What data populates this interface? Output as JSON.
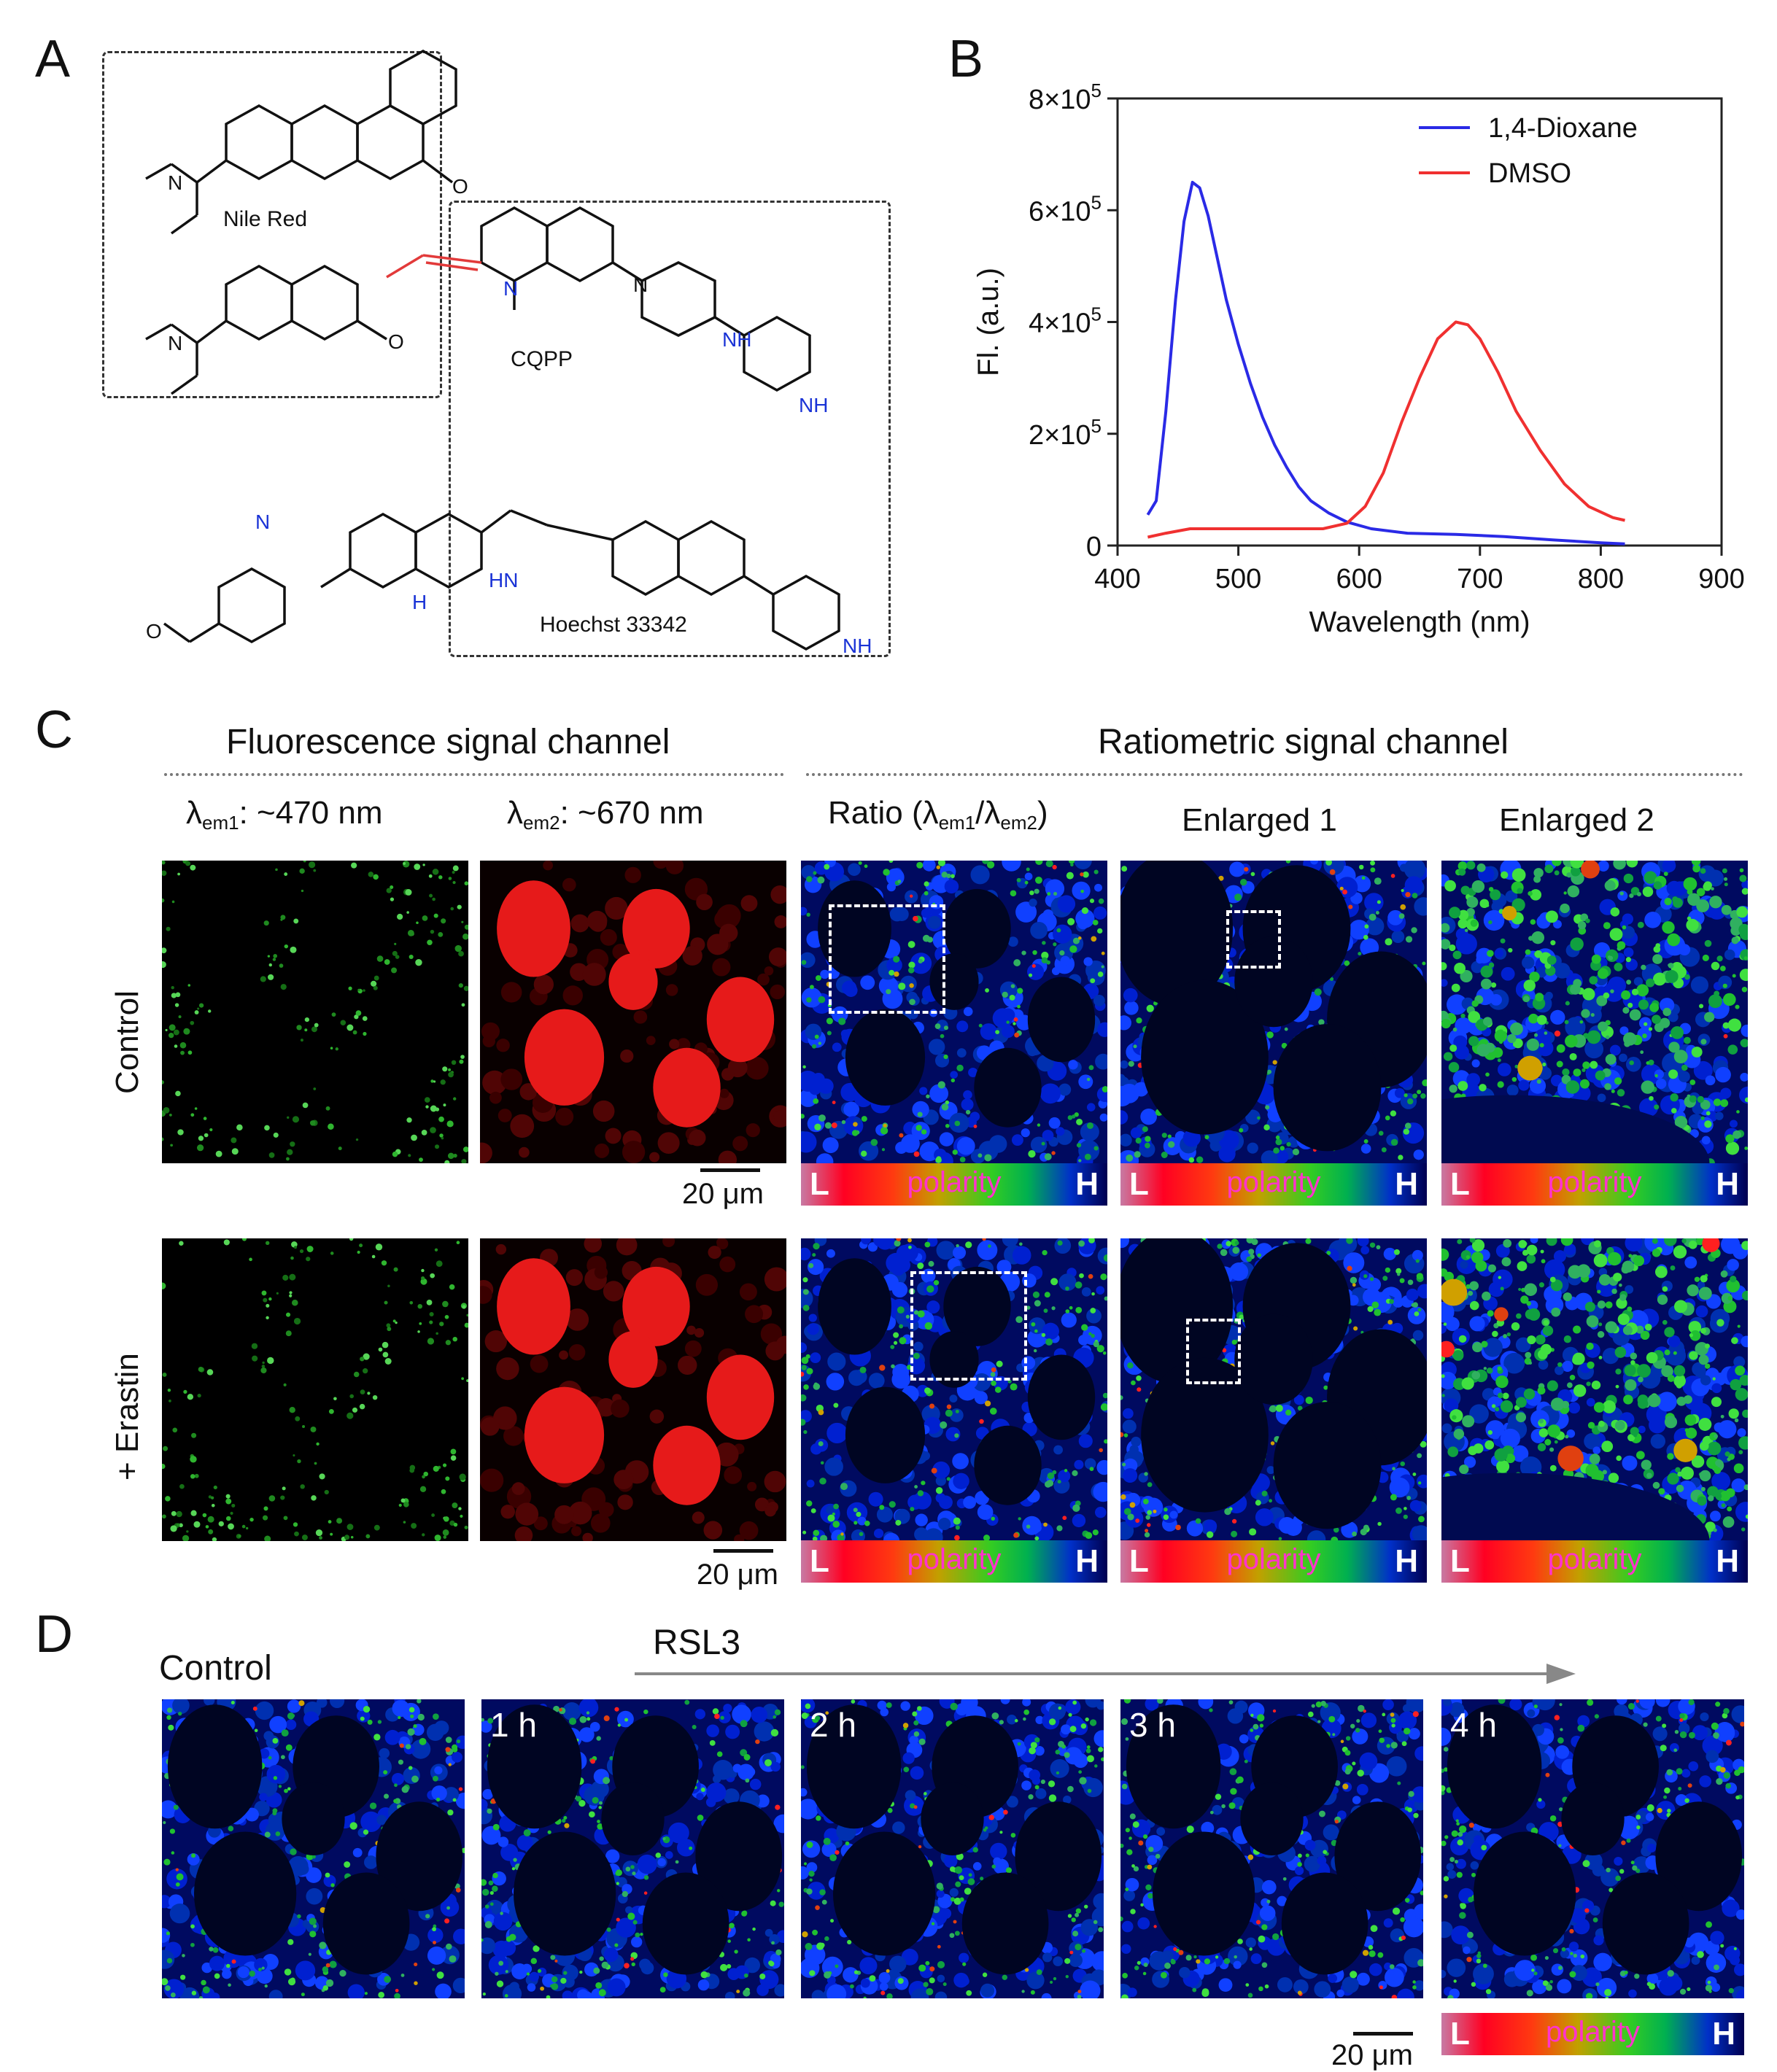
{
  "panels": {
    "a": "A",
    "b": "B",
    "c": "C",
    "d": "D"
  },
  "panel_a": {
    "molecules": [
      "Nile Red",
      "CQPP",
      "Hoechst 33342"
    ]
  },
  "chart_data": {
    "type": "line",
    "title": "",
    "xlabel": "Wavelength (nm)",
    "ylabel": "Fl. (a.u.)",
    "xlim": [
      400,
      900
    ],
    "ylim": [
      0,
      800000
    ],
    "xticks": [
      "400",
      "500",
      "600",
      "700",
      "800",
      "900"
    ],
    "ytick_values": [
      0,
      200000,
      400000,
      600000,
      800000
    ],
    "ytick_labels": [
      {
        "base": "0",
        "exp": ""
      },
      {
        "base": "2×10",
        "exp": "5"
      },
      {
        "base": "4×10",
        "exp": "5"
      },
      {
        "base": "6×10",
        "exp": "5"
      },
      {
        "base": "8×10",
        "exp": "5"
      }
    ],
    "grid": false,
    "legend_position": "top-right",
    "series": [
      {
        "name": "1,4-Dioxane",
        "color": "#2a2ae6",
        "x": [
          425,
          432,
          440,
          448,
          455,
          462,
          468,
          475,
          482,
          490,
          500,
          510,
          520,
          530,
          540,
          550,
          560,
          575,
          590,
          610,
          640,
          680,
          720,
          760,
          800,
          820
        ],
        "y": [
          55000,
          80000,
          240000,
          440000,
          580000,
          650000,
          640000,
          590000,
          520000,
          440000,
          360000,
          290000,
          230000,
          180000,
          140000,
          105000,
          80000,
          58000,
          42000,
          30000,
          22000,
          20000,
          16000,
          10000,
          5000,
          3000
        ]
      },
      {
        "name": "DMSO",
        "color": "#f03030",
        "x": [
          425,
          440,
          460,
          480,
          500,
          540,
          570,
          590,
          605,
          620,
          635,
          650,
          665,
          680,
          690,
          700,
          715,
          730,
          750,
          770,
          790,
          810,
          820
        ],
        "y": [
          15000,
          22000,
          30000,
          30000,
          30000,
          30000,
          30000,
          40000,
          70000,
          130000,
          220000,
          300000,
          370000,
          400000,
          395000,
          370000,
          310000,
          240000,
          170000,
          110000,
          70000,
          50000,
          45000
        ]
      }
    ]
  },
  "panel_c": {
    "group_left": "Fluorescence signal channel",
    "group_right": "Ratiometric signal channel",
    "col_em1_prefix": "λ",
    "col_em1_sub": "em1",
    "col_em1_suffix": ": ~470 nm",
    "col_em2_prefix": "λ",
    "col_em2_sub": "em2",
    "col_em2_suffix": ": ~670 nm",
    "ratio_prefix": "Ratio (λ",
    "ratio_sub1": "em1",
    "ratio_mid": "/λ",
    "ratio_sub2": "em2",
    "ratio_suffix": ")",
    "enlarged1": "Enlarged 1",
    "enlarged2": "Enlarged 2",
    "row_control": "Control",
    "row_erastin": "+ Erastin",
    "scale": "20 μm"
  },
  "panel_d": {
    "control": "Control",
    "treatment": "RSL3",
    "times": [
      "1 h",
      "2 h",
      "3 h",
      "4 h"
    ],
    "scale": "20 μm"
  },
  "colorbar": {
    "low": "L",
    "mid": "polarity",
    "high": "H"
  }
}
